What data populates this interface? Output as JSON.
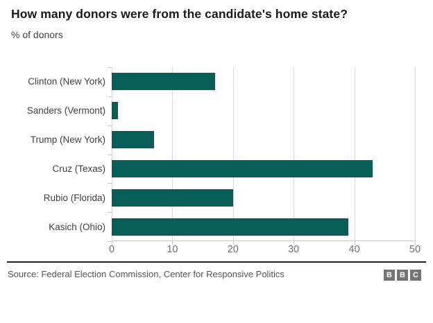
{
  "header": {
    "title": "How many donors were from the candidate's home state?",
    "subtitle": "% of donors"
  },
  "chart_data": {
    "type": "bar",
    "orientation": "horizontal",
    "title": "How many donors were from the candidate's home state?",
    "ylabel": "% of donors",
    "categories": [
      "Clinton (New York)",
      "Sanders (Vermont)",
      "Trump (New York)",
      "Cruz (Texas)",
      "Rubio (Florida)",
      "Kasich (Ohio)"
    ],
    "values": [
      17,
      1,
      7,
      43,
      20,
      39
    ],
    "xlim": [
      0,
      50
    ],
    "xticks": [
      0,
      10,
      20,
      30,
      40,
      50
    ],
    "grid": "vertical",
    "legend": false,
    "bar_color": "#075d57",
    "gridline_color": "#d9d9d9"
  },
  "footer": {
    "source": "Source: Federal Election Commission, Center for Responsive Politics",
    "logo_blocks": [
      "B",
      "B",
      "C"
    ],
    "logo_color": "#757575"
  }
}
